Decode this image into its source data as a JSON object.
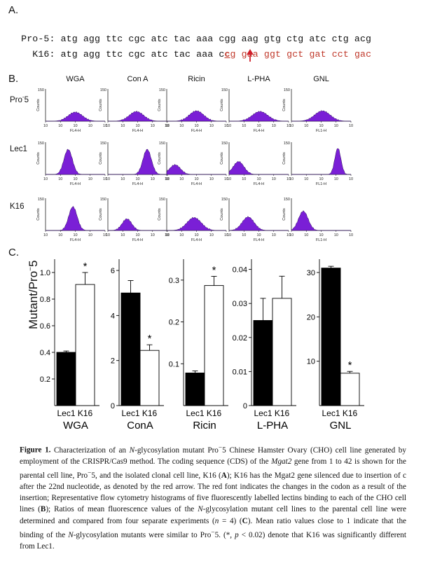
{
  "panel_a": {
    "letter": "A.",
    "rows": [
      {
        "label": "Pro-5:",
        "black": "atg agg ttc cgc atc tac aaa cgg aag gtg ctg atc ctg acg",
        "red": ""
      },
      {
        "label": "  K16:",
        "black": "atg agg ttc cgc atc tac aaa c",
        "underlined": "c",
        "red": "g gaa ggt gct gat cct gac"
      }
    ]
  },
  "panel_b": {
    "letter": "B.",
    "columns": [
      "WGA",
      "Con A",
      "Ricin",
      "L-PHA",
      "GNL"
    ],
    "rows": [
      "Pro-5",
      "Lec1",
      "K16"
    ],
    "ylabel": "Counts",
    "ytick_max": "150",
    "xlabels": [
      "FL4-H",
      "FL4-H",
      "FL4-H",
      "FL4-H",
      "FL1-H"
    ],
    "peak_color": "#7a1fd6",
    "peaks": [
      [
        [
          0.5,
          0.12,
          0.28
        ],
        [
          0.48,
          0.12,
          0.3
        ],
        [
          0.5,
          0.12,
          0.32
        ],
        [
          0.52,
          0.13,
          0.3
        ],
        [
          0.52,
          0.13,
          0.32
        ]
      ],
      [
        [
          0.38,
          0.07,
          0.78
        ],
        [
          0.66,
          0.07,
          0.78
        ],
        [
          0.14,
          0.09,
          0.3
        ],
        [
          0.16,
          0.09,
          0.4
        ],
        [
          0.78,
          0.05,
          0.82
        ]
      ],
      [
        [
          0.46,
          0.07,
          0.74
        ],
        [
          0.32,
          0.08,
          0.36
        ],
        [
          0.46,
          0.12,
          0.4
        ],
        [
          0.32,
          0.1,
          0.42
        ],
        [
          0.2,
          0.08,
          0.6
        ]
      ]
    ]
  },
  "panel_c": {
    "letter": "C.",
    "ylabel": "Mutant/Pro-5"
  },
  "chart_data": [
    {
      "type": "bar",
      "title": "WGA",
      "categories": [
        "Lec1",
        "K16"
      ],
      "values": [
        0.4,
        0.91
      ],
      "errors": [
        0.01,
        0.09
      ],
      "ylim": [
        0,
        1.1
      ],
      "ticks": [
        "0.2",
        "0.4",
        "0.6",
        "0.8",
        "1.0"
      ],
      "tick_values": [
        0.2,
        0.4,
        0.6,
        0.8,
        1.0
      ],
      "star": "*"
    },
    {
      "type": "bar",
      "title": "ConA",
      "categories": [
        "Lec1",
        "K16"
      ],
      "values": [
        5.0,
        2.45
      ],
      "errors": [
        0.55,
        0.25
      ],
      "ylim": [
        0,
        6.5
      ],
      "ticks": [
        "0",
        "2",
        "4",
        "6"
      ],
      "tick_values": [
        0,
        2,
        4,
        6
      ],
      "star": "*"
    },
    {
      "type": "bar",
      "title": "Ricin",
      "categories": [
        "Lec1",
        "K16"
      ],
      "values": [
        0.078,
        0.287
      ],
      "errors": [
        0.005,
        0.022
      ],
      "ylim": [
        0,
        0.35
      ],
      "ticks": [
        "0.1",
        "0.2",
        "0.3"
      ],
      "tick_values": [
        0.1,
        0.2,
        0.3
      ],
      "star": "*"
    },
    {
      "type": "bar",
      "title": "L-PHA",
      "categories": [
        "Lec1",
        "K16"
      ],
      "values": [
        0.025,
        0.0315
      ],
      "errors": [
        0.0065,
        0.0065
      ],
      "ylim": [
        0,
        0.043
      ],
      "ticks": [
        "0",
        "0.01",
        "0.02",
        "0.03",
        "0.04"
      ],
      "tick_values": [
        0,
        0.01,
        0.02,
        0.03,
        0.04
      ],
      "star": ""
    },
    {
      "type": "bar",
      "title": "GNL",
      "categories": [
        "Lec1",
        "K16"
      ],
      "values": [
        31.0,
        7.3
      ],
      "errors": [
        0.4,
        0.4
      ],
      "ylim": [
        0,
        33
      ],
      "ticks": [
        "10",
        "20",
        "30"
      ],
      "tick_values": [
        10,
        20,
        30
      ],
      "star": "*"
    }
  ],
  "caption": {
    "label": "Figure 1.",
    "html": " Characterization of an <i>N</i>-glycosylation mutant Pro<sup>−</sup>5 Chinese Hamster Ovary (CHO) cell line generated by employment of the CRISPR/Cas9 method. The coding sequence (CDS) of the <i>Mgat2</i> gene from 1 to 42 is shown for the parental cell line, Pro<sup>−</sup>5, and the isolated clonal cell line, K16 (<b>A</b>); K16 has the Mgat2 gene silenced due to insertion of c after the 22nd nucleotide, as denoted by the red arrow. The red font indicates the changes in the codon as a result of the insertion; Representative flow cytometry histograms of five fluorescently labelled lectins binding to each of the CHO cell lines (<b>B</b>); Ratios of mean fluorescence values of the <i>N</i>-glycosylation mutant cell lines to the parental cell line were determined and compared from four separate experiments (<i>n</i> = 4) (<b>C</b>). Mean ratio values close to 1 indicate that the binding of the <i>N</i>-glycosylation mutants were similar to Pro<sup>−</sup>5. (*, <i>p</i> &lt; 0.02) denote that K16 was significantly different from Lec1."
  }
}
